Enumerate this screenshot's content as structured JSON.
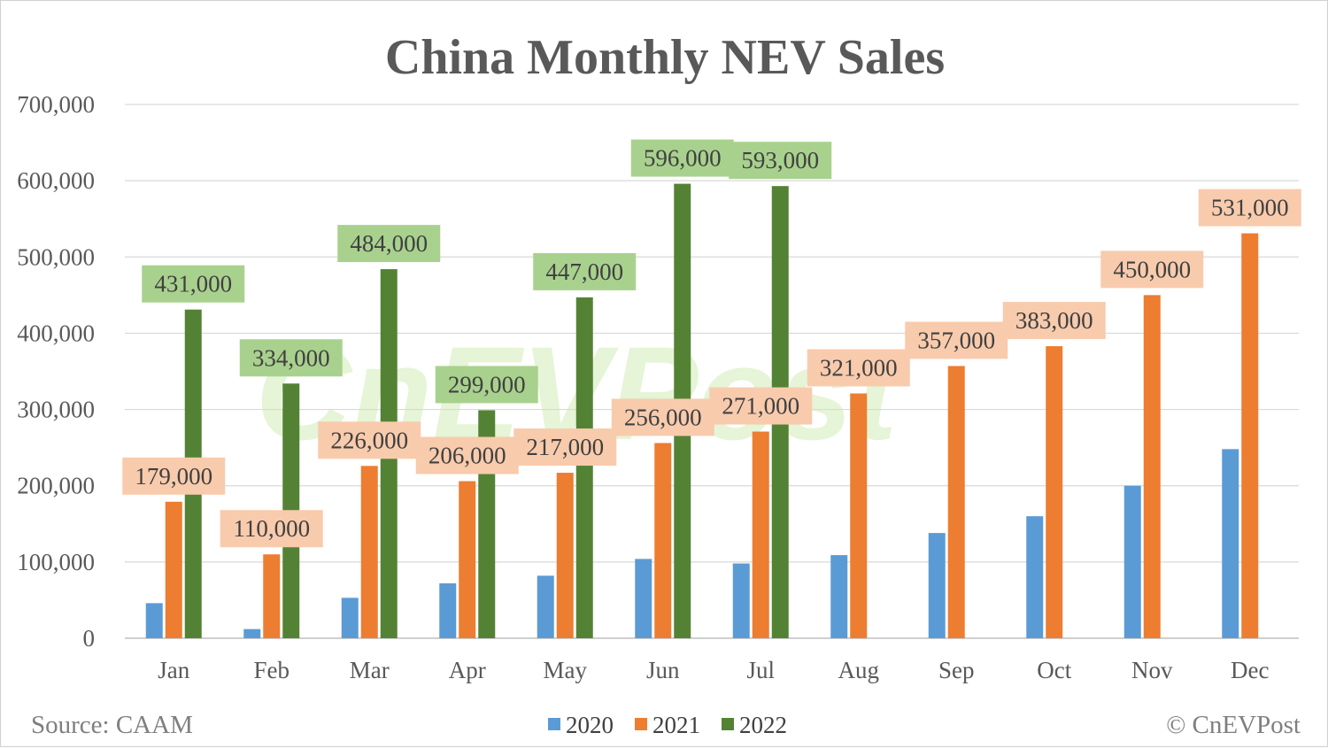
{
  "chart_data": {
    "type": "bar",
    "title": "China Monthly NEV Sales",
    "categories": [
      "Jan",
      "Feb",
      "Mar",
      "Apr",
      "May",
      "Jun",
      "Jul",
      "Aug",
      "Sep",
      "Oct",
      "Nov",
      "Dec"
    ],
    "series": [
      {
        "name": "2020",
        "color": "#5b9bd5",
        "labeled": false,
        "values": [
          46000,
          12000,
          53000,
          72000,
          82000,
          104000,
          98000,
          109000,
          138000,
          160000,
          200000,
          248000
        ]
      },
      {
        "name": "2021",
        "color": "#ed7d31",
        "labeled": true,
        "label_bg": "#f8cbad",
        "values": [
          179000,
          110000,
          226000,
          206000,
          217000,
          256000,
          271000,
          321000,
          357000,
          383000,
          450000,
          531000
        ],
        "data_labels": [
          "179,000",
          "110,000",
          "226,000",
          "206,000",
          "217,000",
          "256,000",
          "271,000",
          "321,000",
          "357,000",
          "383,000",
          "450,000",
          "531,000"
        ]
      },
      {
        "name": "2022",
        "color": "#548235",
        "labeled": true,
        "label_bg": "#a9d18e",
        "values": [
          431000,
          334000,
          484000,
          299000,
          447000,
          596000,
          593000,
          null,
          null,
          null,
          null,
          null
        ],
        "data_labels": [
          "431,000",
          "334,000",
          "484,000",
          "299,000",
          "447,000",
          "596,000",
          "593,000",
          null,
          null,
          null,
          null,
          null
        ]
      }
    ],
    "ylim": [
      0,
      700000
    ],
    "y_ticks": [
      0,
      100000,
      200000,
      300000,
      400000,
      500000,
      600000,
      700000
    ],
    "y_tick_labels": [
      "0",
      "100,000",
      "200,000",
      "300,000",
      "400,000",
      "500,000",
      "600,000",
      "700,000"
    ],
    "grid": true,
    "legend_position": "bottom-center",
    "source": "Source: CAAM",
    "credit": "© CnEVPost",
    "watermark": "CnEVPost"
  }
}
